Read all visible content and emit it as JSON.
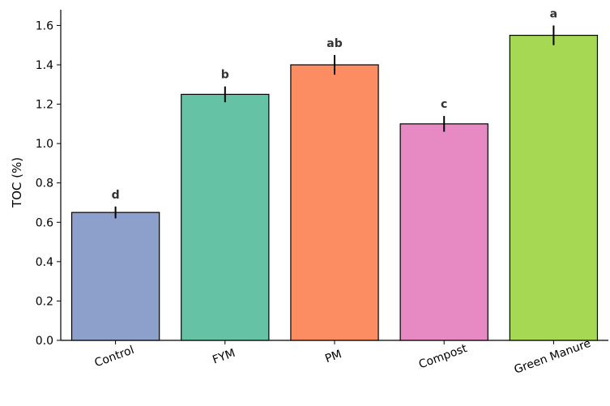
{
  "chart_data": {
    "type": "bar",
    "title": "",
    "xlabel": "",
    "ylabel": "TOC (%)",
    "ylim": [
      0,
      1.68
    ],
    "yticks": [
      0.0,
      0.2,
      0.4,
      0.6,
      0.8,
      1.0,
      1.2,
      1.4,
      1.6
    ],
    "ytick_labels": [
      "0.0",
      "0.2",
      "0.4",
      "0.6",
      "0.8",
      "1.0",
      "1.2",
      "1.4",
      "1.6"
    ],
    "categories": [
      "Control",
      "FYM",
      "PM",
      "Compost",
      "Green Manure"
    ],
    "values": [
      0.65,
      1.25,
      1.4,
      1.1,
      1.55
    ],
    "errors": [
      0.03,
      0.04,
      0.05,
      0.04,
      0.05
    ],
    "significance_letters": [
      "d",
      "b",
      "ab",
      "c",
      "a"
    ],
    "colors": [
      "#8da0cb",
      "#66c2a5",
      "#fc8d62",
      "#e78ac3",
      "#a6d854"
    ],
    "grid": false,
    "legend": "none"
  }
}
